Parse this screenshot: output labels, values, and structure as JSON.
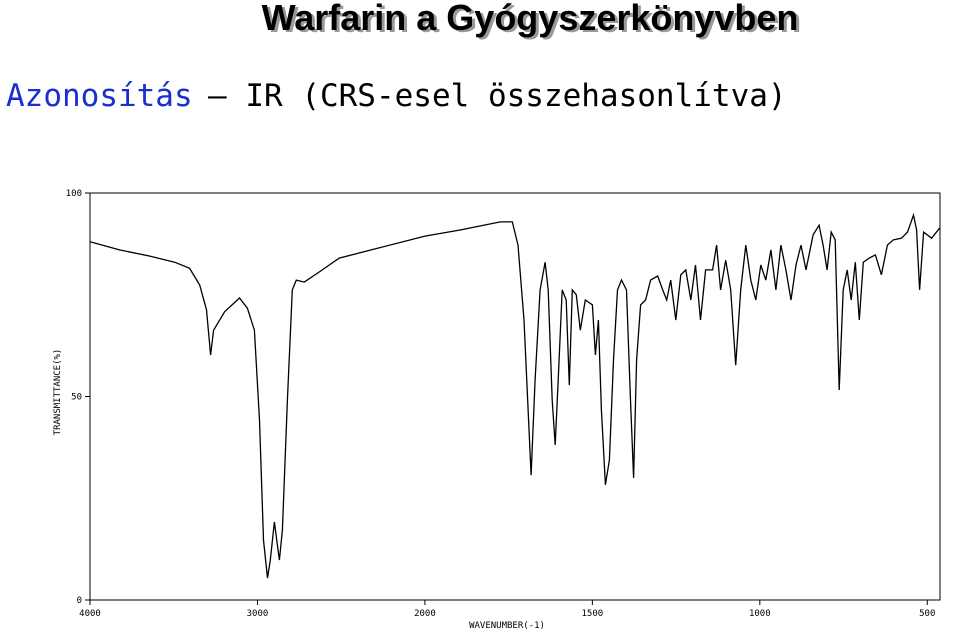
{
  "slide": {
    "title": "Warfarin a Gyógyszerkönyvben",
    "subtitle": [
      "Azonosítás",
      "– IR (CRS-esel összehasonlítva)"
    ]
  },
  "chart_data": {
    "type": "line",
    "color": "#000000",
    "x_label": "WAVENUMBER(-1)",
    "y_label": "TRANSMITTANCE(%)",
    "x_scale_break": 2000,
    "xlim": [
      4000,
      462
    ],
    "xticks": [
      4000,
      3000,
      2000,
      1500,
      1000,
      500
    ],
    "ylim": [
      0,
      100
    ],
    "yticks": [
      0,
      50,
      100
    ],
    "x": [
      4000,
      3821,
      3643,
      3494,
      3405,
      3345,
      3304,
      3280,
      3262,
      3196,
      3107,
      3060,
      3018,
      2988,
      2964,
      2940,
      2923,
      2899,
      2881,
      2869,
      2851,
      2821,
      2792,
      2768,
      2720,
      2631,
      2512,
      2274,
      2000,
      1895,
      1775,
      1739,
      1722,
      1704,
      1683,
      1671,
      1656,
      1641,
      1632,
      1620,
      1611,
      1602,
      1590,
      1578,
      1569,
      1560,
      1548,
      1536,
      1521,
      1500,
      1491,
      1482,
      1473,
      1461,
      1449,
      1437,
      1425,
      1413,
      1398,
      1386,
      1377,
      1368,
      1356,
      1341,
      1326,
      1305,
      1290,
      1278,
      1266,
      1251,
      1236,
      1221,
      1206,
      1192,
      1177,
      1162,
      1141,
      1129,
      1117,
      1102,
      1087,
      1072,
      1057,
      1042,
      1027,
      1012,
      997,
      982,
      967,
      952,
      937,
      922,
      907,
      892,
      877,
      862,
      841,
      823,
      811,
      799,
      787,
      775,
      763,
      751,
      739,
      727,
      715,
      703,
      691,
      673,
      655,
      637,
      619,
      601,
      577,
      559,
      541,
      532,
      523,
      511,
      487,
      463
    ],
    "values": [
      88,
      86,
      84.5,
      83,
      81.5,
      77.4,
      71.3,
      60.2,
      66.3,
      70.8,
      74.2,
      71.7,
      66.3,
      44.2,
      14.7,
      5.4,
      9.8,
      19.2,
      13.5,
      9.8,
      17.2,
      49.1,
      76.2,
      78.6,
      78.1,
      80.6,
      84,
      86.5,
      89.4,
      90.9,
      92.9,
      92.9,
      87.2,
      68.8,
      30.7,
      54.1,
      76.2,
      83,
      76.2,
      49.1,
      38.1,
      54.1,
      76.2,
      73.7,
      52.8,
      76.2,
      75,
      66.3,
      73.7,
      72.5,
      60.2,
      68.8,
      46.7,
      28.3,
      34.4,
      59,
      76.2,
      78.6,
      76.2,
      49.1,
      30,
      59,
      72.5,
      73.7,
      78.6,
      79.6,
      76.2,
      73.7,
      78.6,
      68.8,
      79.9,
      81.1,
      73.7,
      82.3,
      68.8,
      81.1,
      81.1,
      87.2,
      76.2,
      83.5,
      76.2,
      57.7,
      76.2,
      87.2,
      78.6,
      73.7,
      82.3,
      78.6,
      86,
      76.2,
      87.2,
      81.1,
      73.7,
      82.3,
      87.2,
      81.1,
      89.7,
      92.1,
      87.2,
      81.1,
      90.4,
      88.5,
      51.6,
      76.2,
      81.1,
      73.7,
      83,
      68.8,
      83,
      84,
      84.8,
      79.9,
      87.2,
      88.5,
      88.9,
      90.4,
      94.6,
      90.9,
      76.2,
      90.4,
      88.9,
      91.4
    ]
  }
}
